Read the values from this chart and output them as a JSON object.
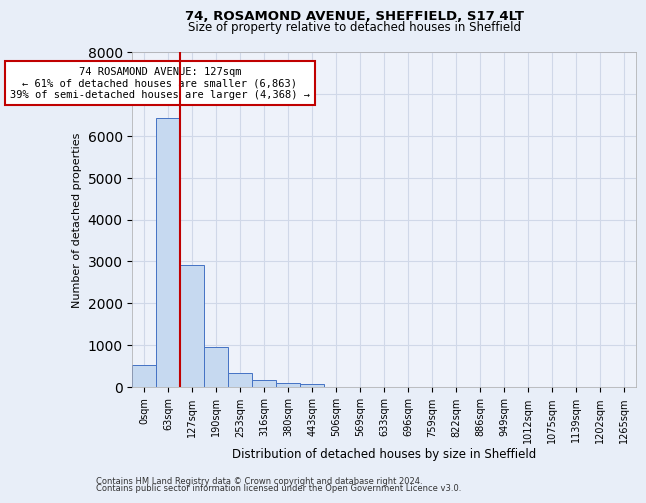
{
  "title1": "74, ROSAMOND AVENUE, SHEFFIELD, S17 4LT",
  "title2": "Size of property relative to detached houses in Sheffield",
  "xlabel": "Distribution of detached houses by size in Sheffield",
  "ylabel": "Number of detached properties",
  "annotation_title": "74 ROSAMOND AVENUE: 127sqm",
  "annotation_line1": "← 61% of detached houses are smaller (6,863)",
  "annotation_line2": "39% of semi-detached houses are larger (4,368) →",
  "property_sqm": 127,
  "bar_categories": [
    "0sqm",
    "63sqm",
    "127sqm",
    "190sqm",
    "253sqm",
    "316sqm",
    "380sqm",
    "443sqm",
    "506sqm",
    "569sqm",
    "633sqm",
    "696sqm",
    "759sqm",
    "822sqm",
    "886sqm",
    "949sqm",
    "1012sqm",
    "1075sqm",
    "1139sqm",
    "1202sqm",
    "1265sqm"
  ],
  "bar_values": [
    530,
    6420,
    2920,
    960,
    330,
    160,
    100,
    60,
    0,
    0,
    0,
    0,
    0,
    0,
    0,
    0,
    0,
    0,
    0,
    0,
    0
  ],
  "bar_color": "#c6d9f0",
  "bar_edge_color": "#4472c4",
  "marker_color": "#c00000",
  "ylim": [
    0,
    8000
  ],
  "yticks": [
    0,
    1000,
    2000,
    3000,
    4000,
    5000,
    6000,
    7000,
    8000
  ],
  "grid_color": "#d0d8e8",
  "bg_color": "#e8eef8",
  "plot_bg_color": "#eef2fa",
  "footnote1": "Contains HM Land Registry data © Crown copyright and database right 2024.",
  "footnote2": "Contains public sector information licensed under the Open Government Licence v3.0."
}
